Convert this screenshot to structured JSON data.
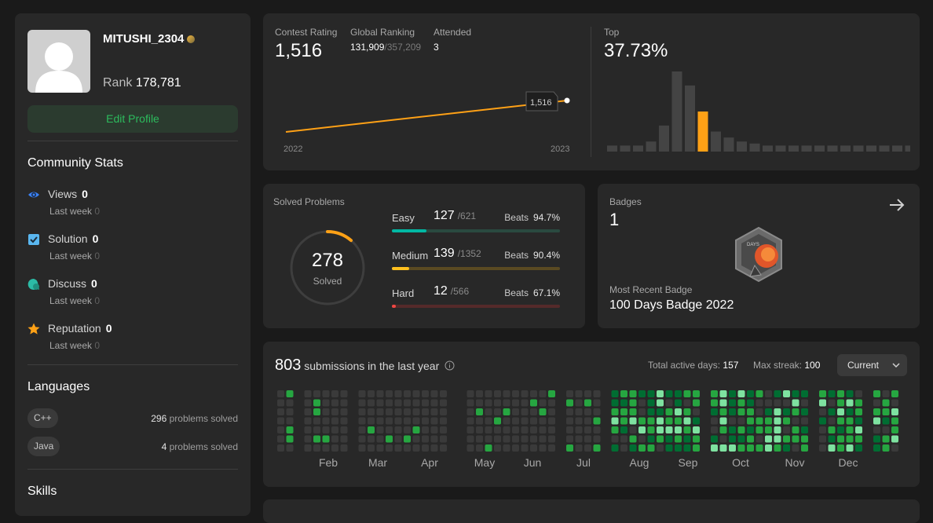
{
  "profile": {
    "username": "MITUSHI_2304",
    "rank_label": "Rank",
    "rank_value": "178,781",
    "edit_label": "Edit Profile"
  },
  "community": {
    "title": "Community Stats",
    "items": [
      {
        "label": "Views",
        "value": "0",
        "sub_label": "Last week",
        "sub_value": "0",
        "icon": "eye-icon",
        "color": "#3b82f6"
      },
      {
        "label": "Solution",
        "value": "0",
        "sub_label": "Last week",
        "sub_value": "0",
        "icon": "check-square-icon",
        "color": "#5ab7f0"
      },
      {
        "label": "Discuss",
        "value": "0",
        "sub_label": "Last week",
        "sub_value": "0",
        "icon": "chat-icon",
        "color": "#2cbba6"
      },
      {
        "label": "Reputation",
        "value": "0",
        "sub_label": "Last week",
        "sub_value": "0",
        "icon": "star-icon",
        "color": "#ffa116"
      }
    ]
  },
  "languages": {
    "title": "Languages",
    "items": [
      {
        "name": "C++",
        "count": "296",
        "suffix": "problems solved"
      },
      {
        "name": "Java",
        "count": "4",
        "suffix": "problems solved"
      }
    ]
  },
  "skills": {
    "title": "Skills"
  },
  "contest": {
    "rating_label": "Contest Rating",
    "rating_value": "1,516",
    "global_label": "Global Ranking",
    "global_value": "131,909",
    "global_total": "/357,209",
    "attended_label": "Attended",
    "attended_value": "3",
    "tooltip": "1,516",
    "year_start": "2022",
    "year_end": "2023",
    "top_label": "Top",
    "top_value": "37.73%",
    "rating_points": [
      1460,
      1516
    ],
    "histogram": [
      3,
      3,
      3,
      5,
      13,
      40,
      33,
      20,
      10,
      7,
      5,
      4,
      3,
      3,
      3,
      3,
      3,
      3,
      3,
      3,
      3,
      3,
      3,
      3
    ],
    "histogram_highlight": 7,
    "accent": "#ffa116"
  },
  "solved": {
    "title": "Solved Problems",
    "total": "278",
    "total_label": "Solved",
    "progress_fraction": 0.113,
    "beats_label": "Beats",
    "rows": [
      {
        "name": "Easy",
        "count": "127",
        "total": "/621",
        "beats": "94.7%",
        "fraction": 0.2045,
        "color": "#00b8a3",
        "track": "#2a4a40"
      },
      {
        "name": "Medium",
        "count": "139",
        "total": "/1352",
        "beats": "90.4%",
        "fraction": 0.1028,
        "color": "#ffc01e",
        "track": "#5a4a22"
      },
      {
        "name": "Hard",
        "count": "12",
        "total": "/566",
        "beats": "67.1%",
        "fraction": 0.0212,
        "color": "#ef4743",
        "track": "#552a2a"
      }
    ]
  },
  "badges": {
    "title": "Badges",
    "count": "1",
    "recent_label": "Most Recent Badge",
    "recent_name": "100 Days Badge 2022",
    "badge_text": "DAYS"
  },
  "submissions": {
    "count": "803",
    "label": "submissions in the last year",
    "active_label": "Total active days:",
    "active_value": "157",
    "streak_label": "Max streak:",
    "streak_value": "100",
    "dropdown": "Current",
    "months": [
      "Feb",
      "Mar",
      "Apr",
      "May",
      "Jun",
      "Jul",
      "Aug",
      "Sep",
      "Oct",
      "Nov",
      "Dec"
    ]
  }
}
